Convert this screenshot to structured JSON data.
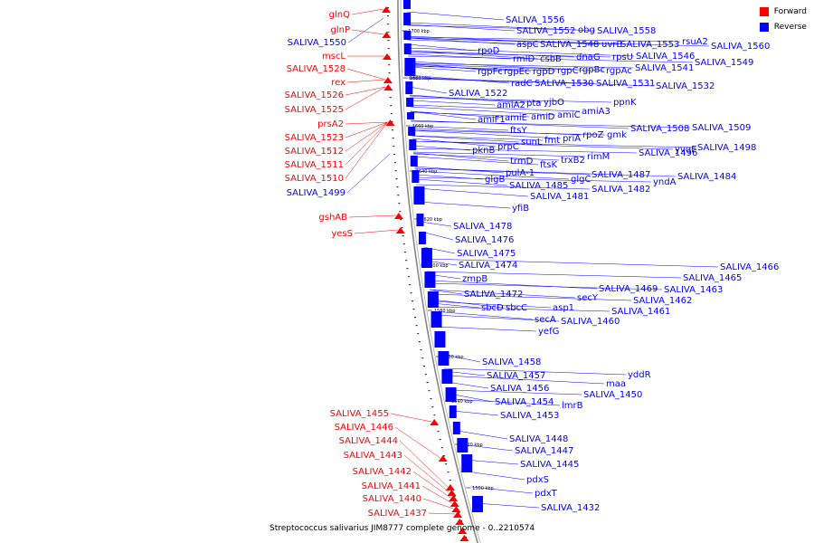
{
  "caption": "Streptococcus salivarius JIM8777 complete genome - 0..2210574",
  "legend": [
    {
      "label": "Forward",
      "color": "#ff0000"
    },
    {
      "label": "Reverse",
      "color": "#0000ff"
    }
  ],
  "colors": {
    "forward": "#ff0000",
    "reverse": "#0000ff",
    "backbone": "#666666"
  },
  "ticks": [
    "1700 kbp",
    "1680 kbp",
    "1660 kbp",
    "1640 kbp",
    "1620 kbp",
    "1600 kbp",
    "1580 kbp",
    "1560 kbp",
    "1540 kbp",
    "1520 kbp",
    "1500 kbp"
  ],
  "forward_labels": [
    "glnQ",
    "glnP",
    "mscL",
    "SALIVA_1528",
    "rex",
    "SALIVA_1526",
    "SALIVA_1525",
    "prsA2",
    "SALIVA_1523",
    "SALIVA_1512",
    "SALIVA_1511",
    "SALIVA_1510",
    "gshAB",
    "yesS",
    "SALIVA_1455",
    "SALIVA_1446",
    "SALIVA_1444",
    "SALIVA_1443",
    "SALIVA_1442",
    "SALIVA_1441",
    "SALIVA_1440",
    "SALIVA_1437"
  ],
  "reverse_labels_left": [
    "SALIVA_1550",
    "SALIVA_1499"
  ],
  "reverse_labels": [
    "SALIVA_1556",
    "SALIVA_1552",
    "obg",
    "SALIVA_1558",
    "aspC",
    "SALIVA_1548",
    "uvrB",
    "SALIVA_1553",
    "rsuA2",
    "SALIVA_1560",
    "rpoD",
    "rmlD",
    "csbB",
    "dnaG",
    "rpsU",
    "SALIVA_1546",
    "SALIVA_1549",
    "rgpFc",
    "rgpEc",
    "rgpD",
    "rgpC",
    "rgpBc",
    "rgpAc",
    "SALIVA_1541",
    "radC",
    "SALIVA_1530",
    "SALIVA_1531",
    "SALIVA_1532",
    "SALIVA_1522",
    "amiA2",
    "pta",
    "yjbO",
    "ppnK",
    "amiF1",
    "amiE",
    "amiD",
    "amiC",
    "amiA3",
    "ftsY",
    "SALIVA_1508",
    "SALIVA_1509",
    "pknB",
    "prpC",
    "sunL",
    "fmt",
    "priA",
    "rpoZ",
    "gmk",
    "yvqE",
    "SALIVA_1498",
    "SALIVA_1496",
    "trmD",
    "trxB2",
    "rimM",
    "ftsK",
    "pulA-1",
    "glgB",
    "glgC",
    "SALIVA_1487",
    "yndA",
    "SALIVA_1484",
    "SALIVA_1485",
    "SALIVA_1482",
    "SALIVA_1481",
    "yfiB",
    "SALIVA_1478",
    "SALIVA_1476",
    "SALIVA_1475",
    "SALIVA_1474",
    "SALIVA_1466",
    "SALIVA_1465",
    "zmpB",
    "SALIVA_1469",
    "SALIVA_1463",
    "SALIVA_1472",
    "secY",
    "SALIVA_1462",
    "sbcD",
    "sbcC",
    "asp1",
    "SALIVA_1461",
    "secA",
    "SALIVA_1460",
    "yefG",
    "SALIVA_1458",
    "yddR",
    "SALIVA_1457",
    "maa",
    "SALIVA_1456",
    "SALIVA_1450",
    "SALIVA_1454",
    "lmrB",
    "SALIVA_1453",
    "SALIVA_1448",
    "SALIVA_1447",
    "SALIVA_1445",
    "pdxS",
    "pdxT",
    "SALIVA_1432"
  ]
}
